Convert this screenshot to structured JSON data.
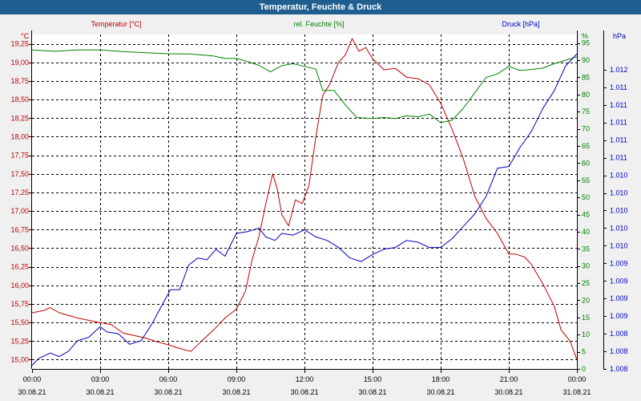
{
  "window": {
    "title": "Temperatur, Feuchte & Druck"
  },
  "chart_data": {
    "type": "line",
    "title": "Temperatur, Feuchte & Druck",
    "colors": {
      "temperature": "#c00000",
      "humidity": "#008000",
      "pressure": "#0000c0",
      "title_bar": "#1f5f8f"
    },
    "x": {
      "range_hours": [
        0,
        24
      ],
      "ticks": [
        {
          "h": 0,
          "time": "00:00",
          "date": "30.08.21"
        },
        {
          "h": 3,
          "time": "03:00",
          "date": "30.08.21"
        },
        {
          "h": 6,
          "time": "06:00",
          "date": "30.08.21"
        },
        {
          "h": 9,
          "time": "09:00",
          "date": "30.08.21"
        },
        {
          "h": 12,
          "time": "12:00",
          "date": "30.08.21"
        },
        {
          "h": 15,
          "time": "15:00",
          "date": "30.08.21"
        },
        {
          "h": 18,
          "time": "18:00",
          "date": "30.08.21"
        },
        {
          "h": 21,
          "time": "21:00",
          "date": "30.08.21"
        },
        {
          "h": 24,
          "time": "00:00",
          "date": "31.08.21"
        }
      ]
    },
    "axes": {
      "temperature": {
        "unit": "°C",
        "legend": "Temperatur [°C]",
        "range": [
          14.875,
          19.375
        ],
        "ticks": [
          {
            "v": 15.0,
            "label": "15,00"
          },
          {
            "v": 15.25,
            "label": "15,25"
          },
          {
            "v": 15.5,
            "label": "15,50"
          },
          {
            "v": 15.75,
            "label": "15,75"
          },
          {
            "v": 16.0,
            "label": "16,00"
          },
          {
            "v": 16.25,
            "label": "16,25"
          },
          {
            "v": 16.5,
            "label": "16,50"
          },
          {
            "v": 16.75,
            "label": "16,75"
          },
          {
            "v": 17.0,
            "label": "17,00"
          },
          {
            "v": 17.25,
            "label": "17,25"
          },
          {
            "v": 17.5,
            "label": "17,50"
          },
          {
            "v": 17.75,
            "label": "17,75"
          },
          {
            "v": 18.0,
            "label": "18,00"
          },
          {
            "v": 18.25,
            "label": "18,25"
          },
          {
            "v": 18.5,
            "label": "18,50"
          },
          {
            "v": 18.75,
            "label": "18,75"
          },
          {
            "v": 19.0,
            "label": "19,00"
          },
          {
            "v": 19.25,
            "label": "19,25"
          }
        ]
      },
      "humidity": {
        "unit": "%",
        "legend": "rel. Feuchte [%]",
        "range": [
          0,
          97.5
        ],
        "ticks": [
          {
            "v": 0,
            "label": "0"
          },
          {
            "v": 5,
            "label": "5"
          },
          {
            "v": 10,
            "label": "10"
          },
          {
            "v": 15,
            "label": "15"
          },
          {
            "v": 20,
            "label": "20"
          },
          {
            "v": 25,
            "label": "25"
          },
          {
            "v": 30,
            "label": "30"
          },
          {
            "v": 35,
            "label": "35"
          },
          {
            "v": 40,
            "label": "40"
          },
          {
            "v": 45,
            "label": "45"
          },
          {
            "v": 50,
            "label": "50"
          },
          {
            "v": 55,
            "label": "55"
          },
          {
            "v": 60,
            "label": "60"
          },
          {
            "v": 65,
            "label": "65"
          },
          {
            "v": 70,
            "label": "70"
          },
          {
            "v": 75,
            "label": "75"
          },
          {
            "v": 80,
            "label": "80"
          },
          {
            "v": 85,
            "label": "85"
          },
          {
            "v": 90,
            "label": "90"
          },
          {
            "v": 95,
            "label": "95"
          }
        ]
      },
      "pressure": {
        "unit": "hPa",
        "legend": "Druck [hPa]",
        "range": [
          0,
          19
        ],
        "ticks": [
          {
            "v": 0,
            "label": "1.008"
          },
          {
            "v": 1,
            "label": "1.008"
          },
          {
            "v": 2,
            "label": "1.008"
          },
          {
            "v": 3,
            "label": "1.009"
          },
          {
            "v": 4,
            "label": "1.009"
          },
          {
            "v": 5,
            "label": "1.009"
          },
          {
            "v": 6,
            "label": "1.009"
          },
          {
            "v": 7,
            "label": "1.010"
          },
          {
            "v": 8,
            "label": "1.010"
          },
          {
            "v": 9,
            "label": "1.010"
          },
          {
            "v": 10,
            "label": "1.010"
          },
          {
            "v": 11,
            "label": "1.010"
          },
          {
            "v": 12,
            "label": "1.011"
          },
          {
            "v": 13,
            "label": "1.011"
          },
          {
            "v": 14,
            "label": "1.011"
          },
          {
            "v": 15,
            "label": "1.011"
          },
          {
            "v": 16,
            "label": "1.011"
          },
          {
            "v": 17,
            "label": "1.012"
          }
        ]
      }
    },
    "series": [
      {
        "name": "Temperatur [°C]",
        "axis": "temperature",
        "color": "#c00000",
        "points": [
          [
            0,
            15.63
          ],
          [
            0.5,
            15.66
          ],
          [
            0.8,
            15.7
          ],
          [
            1.2,
            15.63
          ],
          [
            2,
            15.56
          ],
          [
            2.8,
            15.51
          ],
          [
            3.5,
            15.47
          ],
          [
            4,
            15.36
          ],
          [
            5,
            15.29
          ],
          [
            5.5,
            15.24
          ],
          [
            6,
            15.2
          ],
          [
            6.5,
            15.15
          ],
          [
            7,
            15.11
          ],
          [
            7.5,
            15.26
          ],
          [
            8,
            15.4
          ],
          [
            8.5,
            15.56
          ],
          [
            9,
            15.68
          ],
          [
            9.4,
            15.92
          ],
          [
            9.7,
            16.35
          ],
          [
            10,
            16.66
          ],
          [
            10.3,
            17.1
          ],
          [
            10.6,
            17.5
          ],
          [
            10.8,
            17.3
          ],
          [
            11,
            16.95
          ],
          [
            11.3,
            16.8
          ],
          [
            11.6,
            17.15
          ],
          [
            11.9,
            17.1
          ],
          [
            12.2,
            17.35
          ],
          [
            12.5,
            18.0
          ],
          [
            12.8,
            18.55
          ],
          [
            13.1,
            18.7
          ],
          [
            13.5,
            19.0
          ],
          [
            13.8,
            19.1
          ],
          [
            14.1,
            19.32
          ],
          [
            14.4,
            19.15
          ],
          [
            14.7,
            19.2
          ],
          [
            15,
            19.05
          ],
          [
            15.5,
            18.9
          ],
          [
            16,
            18.92
          ],
          [
            16.5,
            18.8
          ],
          [
            17,
            18.78
          ],
          [
            17.5,
            18.7
          ],
          [
            18,
            18.45
          ],
          [
            18.5,
            18.1
          ],
          [
            19,
            17.7
          ],
          [
            19.5,
            17.2
          ],
          [
            20,
            16.9
          ],
          [
            20.5,
            16.7
          ],
          [
            21,
            16.42
          ],
          [
            21.3,
            16.42
          ],
          [
            21.7,
            16.38
          ],
          [
            22,
            16.28
          ],
          [
            22.5,
            16.02
          ],
          [
            23,
            15.72
          ],
          [
            23.3,
            15.4
          ],
          [
            23.7,
            15.25
          ],
          [
            24,
            15.0
          ]
        ]
      },
      {
        "name": "rel. Feuchte [%]",
        "axis": "humidity",
        "color": "#008000",
        "points": [
          [
            0,
            93
          ],
          [
            1,
            92.6
          ],
          [
            2,
            93
          ],
          [
            3,
            93
          ],
          [
            4,
            92.5
          ],
          [
            5,
            92.2
          ],
          [
            6,
            91.9
          ],
          [
            7,
            91.8
          ],
          [
            8,
            91.2
          ],
          [
            8.5,
            90.5
          ],
          [
            9,
            90.5
          ],
          [
            9.5,
            89.6
          ],
          [
            10,
            88.5
          ],
          [
            10.5,
            86.6
          ],
          [
            11,
            88.4
          ],
          [
            11.5,
            89
          ],
          [
            12,
            88.2
          ],
          [
            12.5,
            87.4
          ],
          [
            12.8,
            81.2
          ],
          [
            13.3,
            81.2
          ],
          [
            13.8,
            77
          ],
          [
            14.3,
            73.3
          ],
          [
            15,
            73
          ],
          [
            15.5,
            73.3
          ],
          [
            16,
            73
          ],
          [
            16.5,
            73.8
          ],
          [
            17,
            73.5
          ],
          [
            17.5,
            74.3
          ],
          [
            18,
            71.8
          ],
          [
            18.5,
            72.5
          ],
          [
            19,
            76
          ],
          [
            19.5,
            80.5
          ],
          [
            20,
            85
          ],
          [
            20.5,
            86
          ],
          [
            21,
            88.2
          ],
          [
            21.5,
            87
          ],
          [
            22,
            87.3
          ],
          [
            22.5,
            87.7
          ],
          [
            23,
            89
          ],
          [
            23.5,
            90
          ],
          [
            24,
            91
          ]
        ]
      },
      {
        "name": "Druck [hPa]",
        "axis": "pressure",
        "color": "#0000c0",
        "points": [
          [
            0,
            0.2
          ],
          [
            0.3,
            0.6
          ],
          [
            0.8,
            0.9
          ],
          [
            1.2,
            0.7
          ],
          [
            1.6,
            1.0
          ],
          [
            2,
            1.6
          ],
          [
            2.5,
            1.8
          ],
          [
            3,
            2.4
          ],
          [
            3.3,
            2.1
          ],
          [
            3.8,
            2.0
          ],
          [
            4.3,
            1.4
          ],
          [
            4.8,
            1.6
          ],
          [
            5.3,
            2.6
          ],
          [
            5.8,
            3.8
          ],
          [
            6.1,
            4.5
          ],
          [
            6.5,
            4.5
          ],
          [
            6.9,
            5.9
          ],
          [
            7.3,
            6.3
          ],
          [
            7.7,
            6.2
          ],
          [
            8.1,
            6.8
          ],
          [
            8.5,
            6.4
          ],
          [
            9,
            7.7
          ],
          [
            9.5,
            7.8
          ],
          [
            10,
            8.0
          ],
          [
            10.3,
            7.5
          ],
          [
            10.7,
            7.3
          ],
          [
            11,
            7.7
          ],
          [
            11.5,
            7.6
          ],
          [
            12,
            7.9
          ],
          [
            12.5,
            7.5
          ],
          [
            13,
            7.3
          ],
          [
            13.5,
            6.9
          ],
          [
            14,
            6.3
          ],
          [
            14.5,
            6.1
          ],
          [
            15,
            6.5
          ],
          [
            15.5,
            6.8
          ],
          [
            16,
            6.9
          ],
          [
            16.5,
            7.3
          ],
          [
            17,
            7.2
          ],
          [
            17.5,
            6.9
          ],
          [
            18,
            6.9
          ],
          [
            18.5,
            7.4
          ],
          [
            19,
            8.1
          ],
          [
            19.5,
            8.8
          ],
          [
            20,
            9.8
          ],
          [
            20.5,
            11.4
          ],
          [
            21,
            11.5
          ],
          [
            21.5,
            12.6
          ],
          [
            22,
            13.5
          ],
          [
            22.5,
            14.8
          ],
          [
            23,
            15.8
          ],
          [
            23.5,
            17.2
          ],
          [
            24,
            17.9
          ]
        ]
      }
    ]
  }
}
